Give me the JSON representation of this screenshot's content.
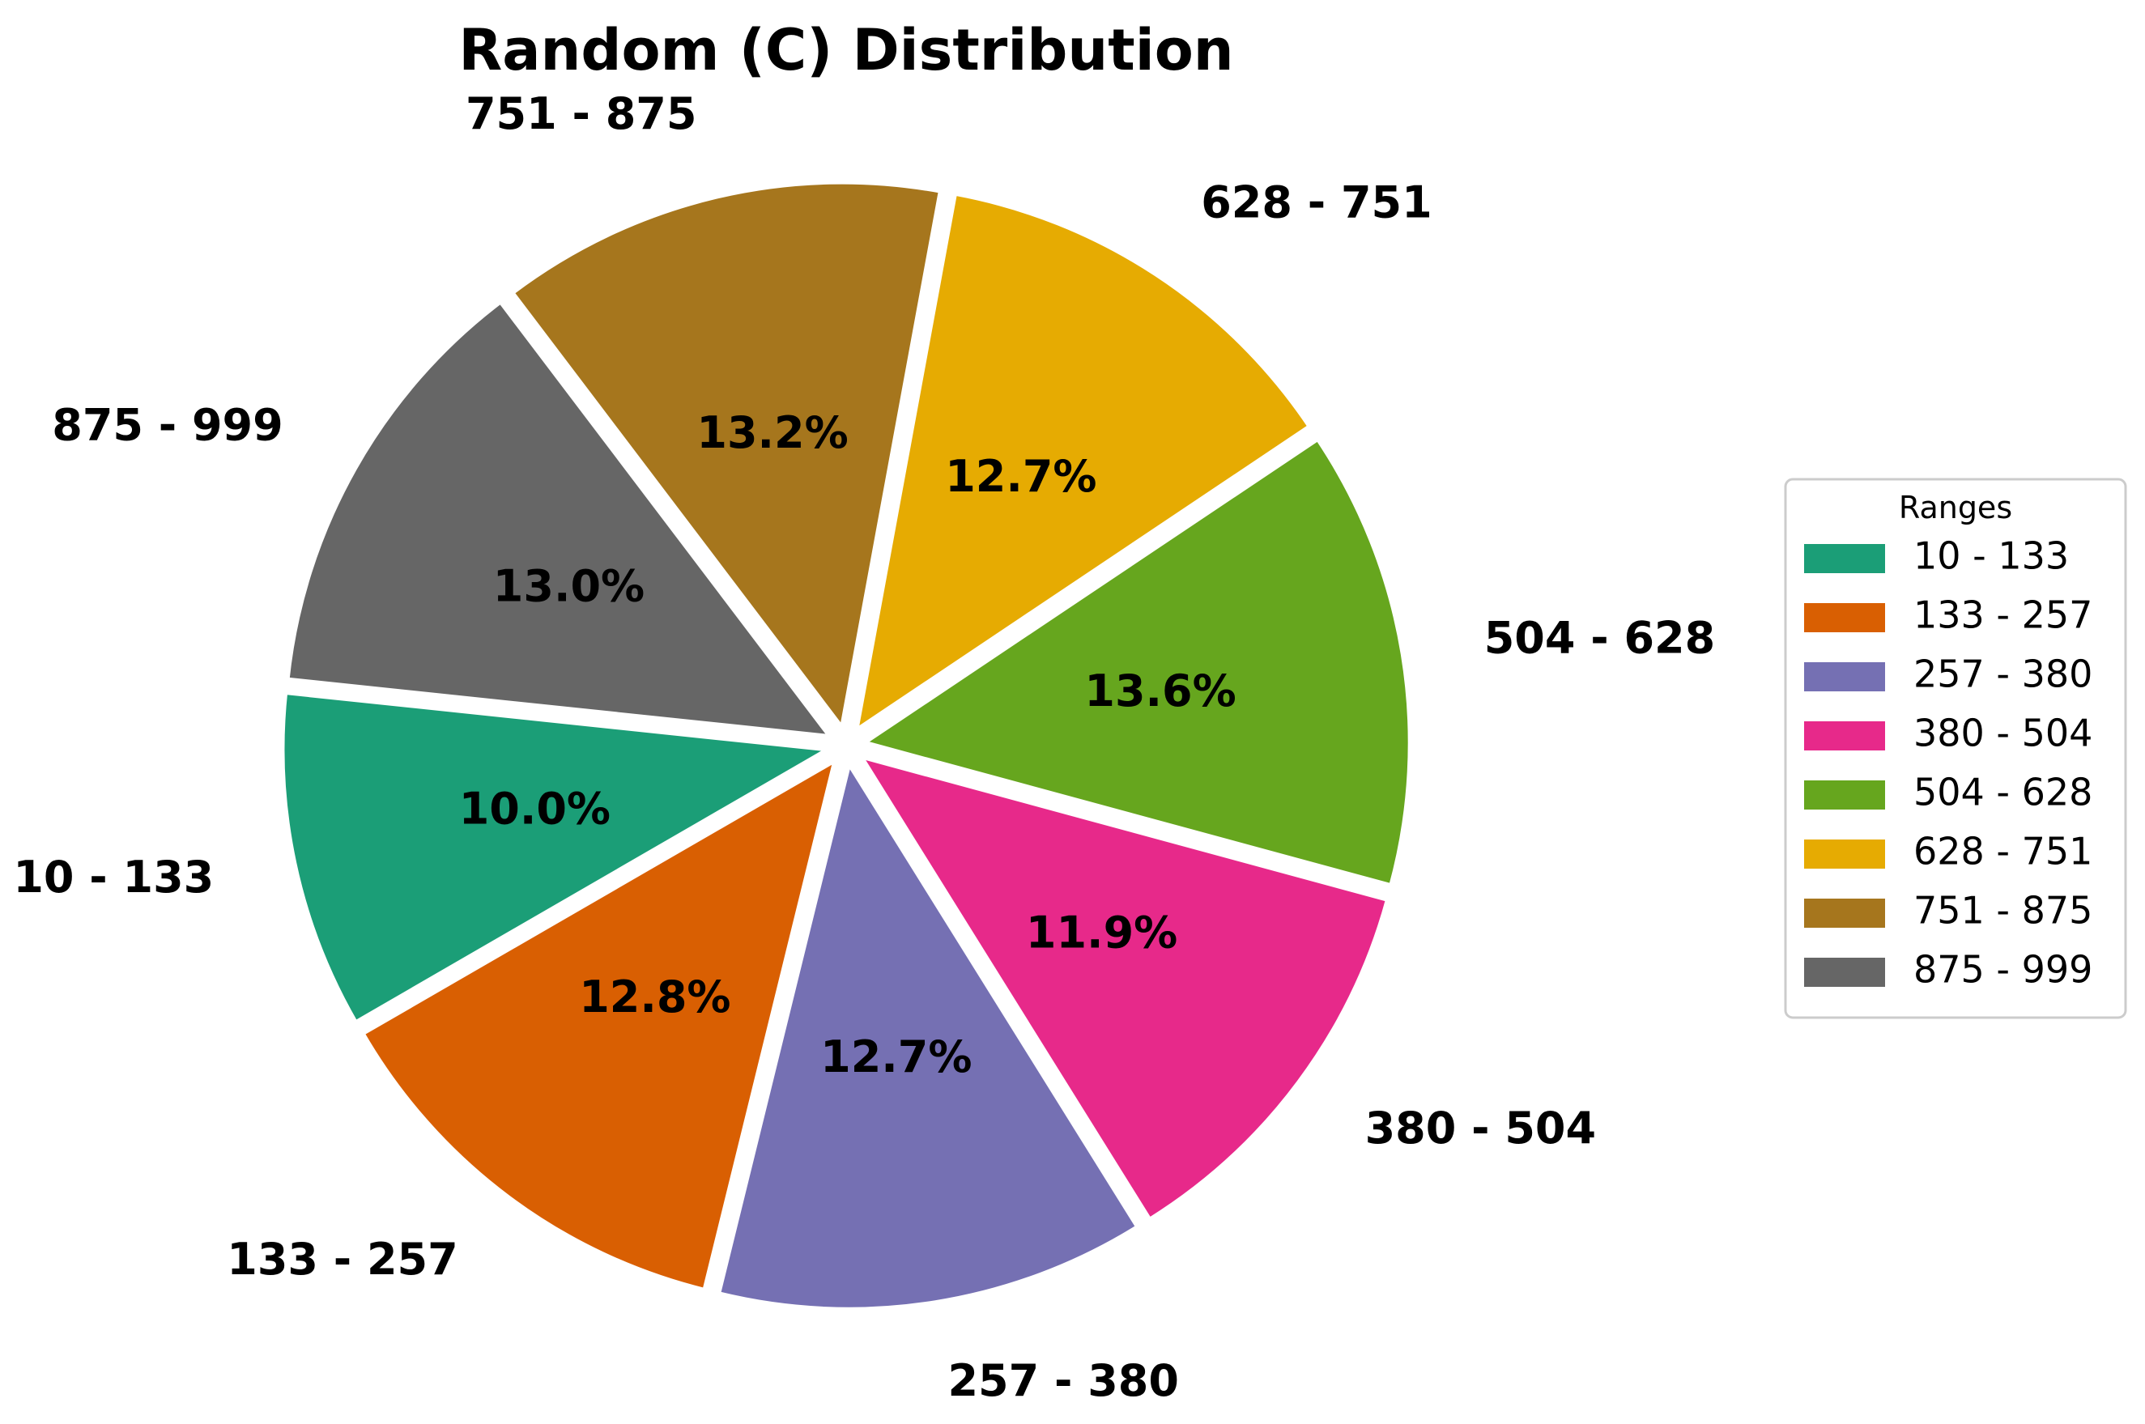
{
  "chart_data": {
    "type": "pie",
    "title": "Random (C) Distribution",
    "categories": [
      "10 - 133",
      "133 - 257",
      "257 - 380",
      "380 - 504",
      "504 - 628",
      "628 - 751",
      "751 - 875",
      "875 - 999"
    ],
    "values": [
      10.0,
      12.8,
      12.7,
      11.9,
      13.6,
      12.7,
      13.2,
      13.0
    ],
    "value_labels": [
      "10.0%",
      "12.8%",
      "12.7%",
      "11.9%",
      "13.6%",
      "12.7%",
      "13.2%",
      "13.0%"
    ],
    "colors": [
      "#1b9e77",
      "#d95f02",
      "#7570b3",
      "#e7298a",
      "#66a61e",
      "#e6ab02",
      "#a6761d",
      "#666666"
    ],
    "start_angle_deg": 174,
    "direction": "counterclockwise",
    "exploded": true,
    "legend": {
      "title": "Ranges",
      "position": "right",
      "entries": [
        "10 - 133",
        "133 - 257",
        "257 - 380",
        "380 - 504",
        "504 - 628",
        "628 - 751",
        "751 - 875",
        "875 - 999"
      ]
    }
  }
}
